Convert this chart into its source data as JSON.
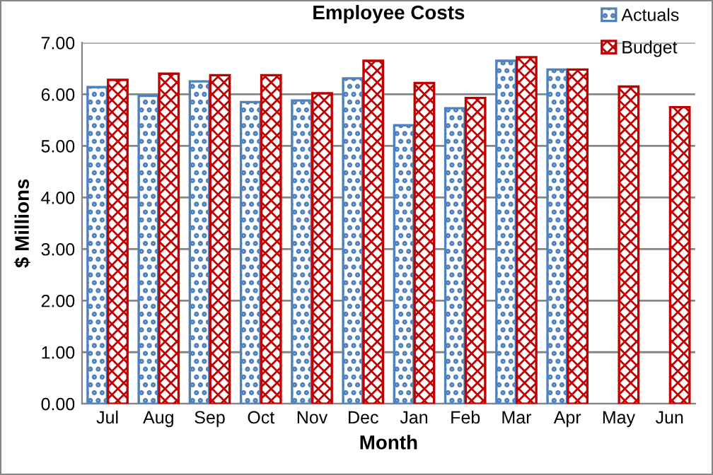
{
  "chart_data": {
    "type": "bar",
    "title": "Employee Costs",
    "xlabel": "Month",
    "ylabel": "$ Millions",
    "categories": [
      "Jul",
      "Aug",
      "Sep",
      "Oct",
      "Nov",
      "Dec",
      "Jan",
      "Feb",
      "Mar",
      "Apr",
      "May",
      "Jun"
    ],
    "series": [
      {
        "name": "Actuals",
        "color": "#4f81bd",
        "values": [
          6.14,
          5.97,
          6.25,
          5.85,
          5.88,
          6.31,
          5.4,
          5.73,
          6.65,
          6.48,
          null,
          null
        ]
      },
      {
        "name": "Budget",
        "color": "#c00000",
        "values": [
          6.28,
          6.4,
          6.37,
          6.37,
          6.02,
          6.65,
          6.22,
          5.93,
          6.72,
          6.48,
          6.15,
          5.75
        ]
      }
    ],
    "ylim": [
      0,
      7
    ],
    "yticks": [
      {
        "value": 0,
        "label": "0.00"
      },
      {
        "value": 1,
        "label": "1.00"
      },
      {
        "value": 2,
        "label": "2.00"
      },
      {
        "value": 3,
        "label": "3.00"
      },
      {
        "value": 4,
        "label": "4.00"
      },
      {
        "value": 5,
        "label": "5.00"
      },
      {
        "value": 6,
        "label": "6.00"
      },
      {
        "value": 7,
        "label": "7.00"
      }
    ],
    "grid": "y",
    "legend": "top right"
  }
}
